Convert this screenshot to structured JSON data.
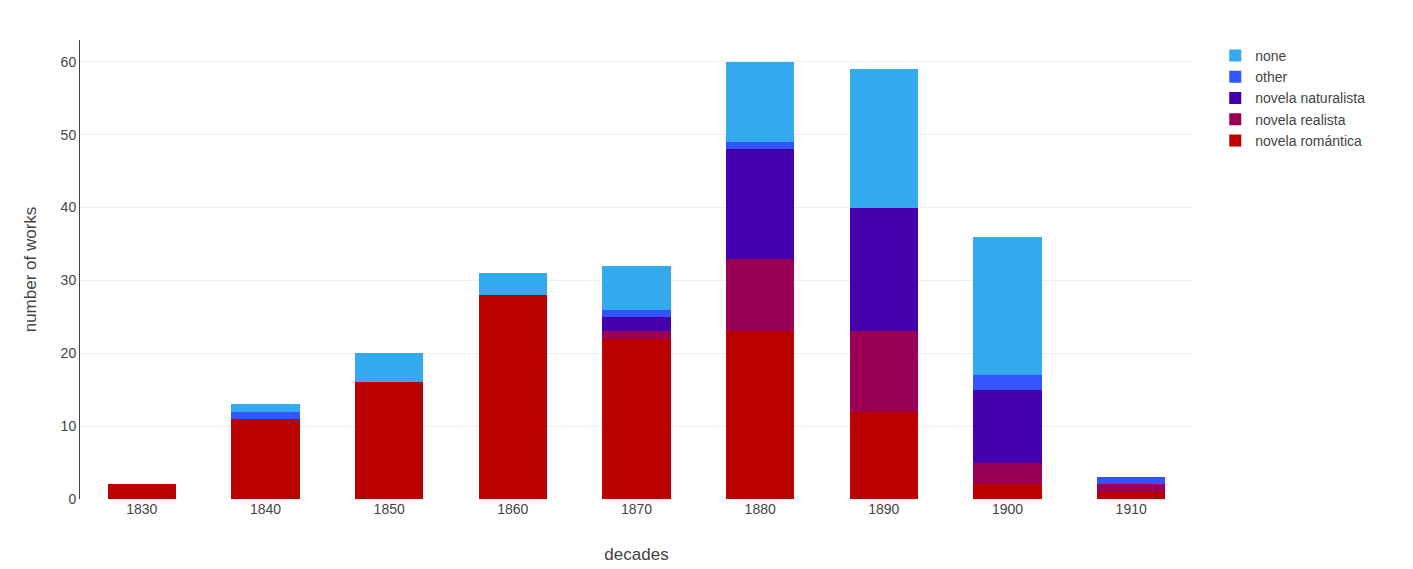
{
  "chart_data": {
    "type": "bar",
    "stacked": true,
    "xlabel": "decades",
    "ylabel": "number of works",
    "categories": [
      "1830",
      "1840",
      "1850",
      "1860",
      "1870",
      "1880",
      "1890",
      "1900",
      "1910"
    ],
    "series": [
      {
        "name": "novela romántica",
        "color": "#bb0000",
        "values": [
          2,
          11,
          16,
          28,
          22,
          23,
          12,
          2,
          1
        ]
      },
      {
        "name": "novela realista",
        "color": "#990055",
        "values": [
          0,
          0,
          0,
          0,
          1,
          10,
          11,
          3,
          1
        ]
      },
      {
        "name": "novela naturalista",
        "color": "#4400aa",
        "values": [
          0,
          0,
          0,
          0,
          2,
          15,
          17,
          10,
          0
        ]
      },
      {
        "name": "other",
        "color": "#3355ff",
        "values": [
          0,
          1,
          0,
          0,
          1,
          1,
          0,
          2,
          1
        ]
      },
      {
        "name": "none",
        "color": "#33aaee",
        "values": [
          0,
          1,
          4,
          3,
          6,
          11,
          19,
          19,
          0
        ]
      }
    ],
    "ylim": [
      0,
      63
    ],
    "yticks": [
      0,
      10,
      20,
      30,
      40,
      50,
      60
    ],
    "grid": true,
    "legend": "upper right"
  }
}
